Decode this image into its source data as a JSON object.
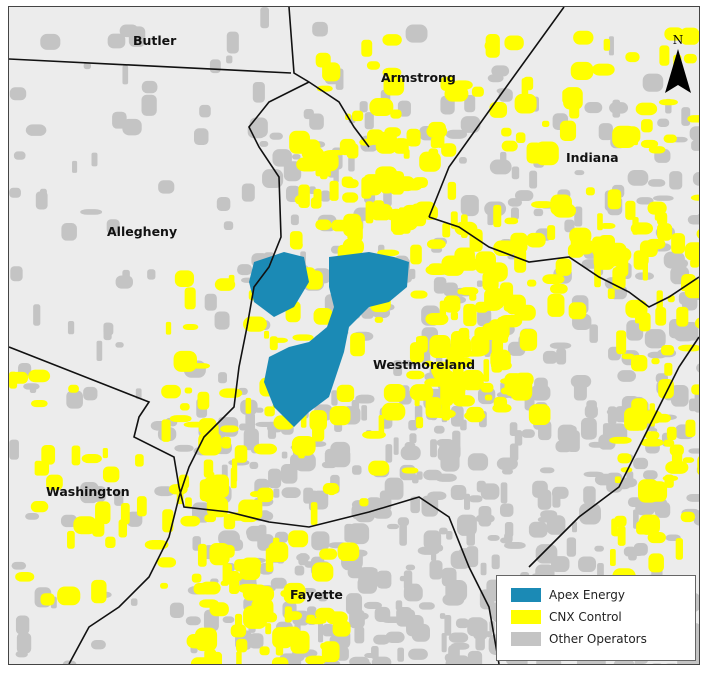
{
  "map": {
    "counties": [
      "Butler",
      "Armstrong",
      "Indiana",
      "Allegheny",
      "Westmoreland",
      "Washington",
      "Fayette"
    ],
    "north_label": "N",
    "colors": {
      "apex": "#1b8ab5",
      "cnx": "#ffff00",
      "other": "#c4c4c4",
      "background": "#ececec"
    }
  },
  "legend": {
    "items": [
      {
        "label": "Apex Energy",
        "color": "#1b8ab5"
      },
      {
        "label": "CNX Control",
        "color": "#ffff00"
      },
      {
        "label": "Other Operators",
        "color": "#c4c4c4"
      }
    ]
  }
}
